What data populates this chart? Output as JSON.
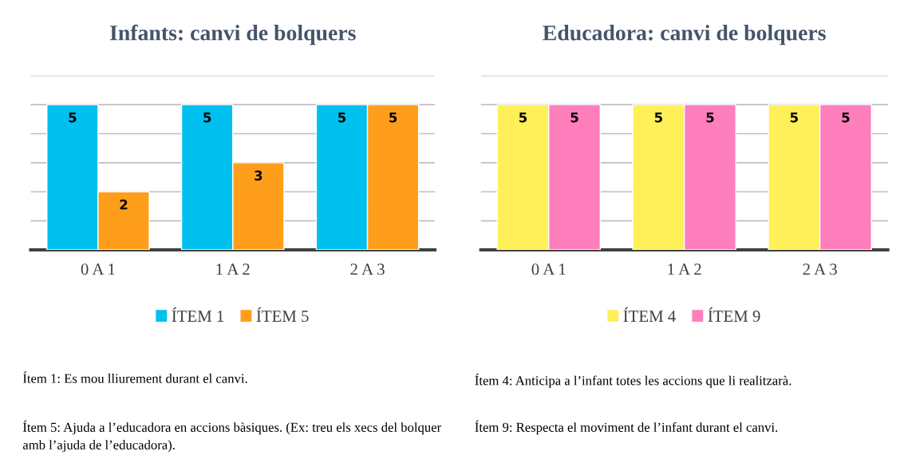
{
  "chart_data": [
    {
      "type": "bar",
      "title": "Infants: canvi de bolquers",
      "categories": [
        "0 A 1",
        "1 A 2",
        "2 A 3"
      ],
      "series": [
        {
          "name": "ÍTEM 1",
          "color": "#00c0ef",
          "values": [
            5,
            5,
            5
          ]
        },
        {
          "name": "ÍTEM 5",
          "color": "#ff9e1b",
          "values": [
            2,
            3,
            5
          ]
        }
      ],
      "ylim": [
        0,
        6
      ],
      "yticks": [
        {
          "value": 0,
          "label": null
        },
        {
          "value": 1,
          "label": null
        },
        {
          "value": 2,
          "label": null
        },
        {
          "value": 3,
          "label": null
        },
        {
          "value": 4,
          "label": null
        },
        {
          "value": 5,
          "label": null
        },
        {
          "value": 6,
          "label": null
        }
      ],
      "tick_labels": "x",
      "grid": "y",
      "legend": "bottom",
      "data_labels": true,
      "annotations": [
        "Ítem 1: Es mou lliurement durant el canvi.",
        "Ítem 5: Ajuda a l’educadora en accions bàsiques. (Ex: treu els xecs del bolquer amb l’ajuda de l’educadora)."
      ]
    },
    {
      "type": "bar",
      "title": "Educadora: canvi de bolquers",
      "categories": [
        "0 A 1",
        "1 A 2",
        "2 A 3"
      ],
      "series": [
        {
          "name": "ÍTEM 4",
          "color": "#fff05a",
          "values": [
            5,
            5,
            5
          ]
        },
        {
          "name": "ÍTEM 9",
          "color": "#ff7ebc",
          "values": [
            5,
            5,
            5
          ]
        }
      ],
      "ylim": [
        0,
        6
      ],
      "yticks": [
        {
          "value": 0,
          "label": null
        },
        {
          "value": 1,
          "label": null
        },
        {
          "value": 2,
          "label": null
        },
        {
          "value": 3,
          "label": null
        },
        {
          "value": 4,
          "label": null
        },
        {
          "value": 5,
          "label": null
        },
        {
          "value": 6,
          "label": null
        }
      ],
      "tick_labels": "x",
      "grid": "y",
      "legend": "bottom",
      "data_labels": true,
      "annotations": [
        "Ítem 4: Anticipa a l’infant totes les accions que li realitzarà.",
        "Ítem 9: Respecta el moviment de l’infant durant el canvi."
      ]
    }
  ]
}
